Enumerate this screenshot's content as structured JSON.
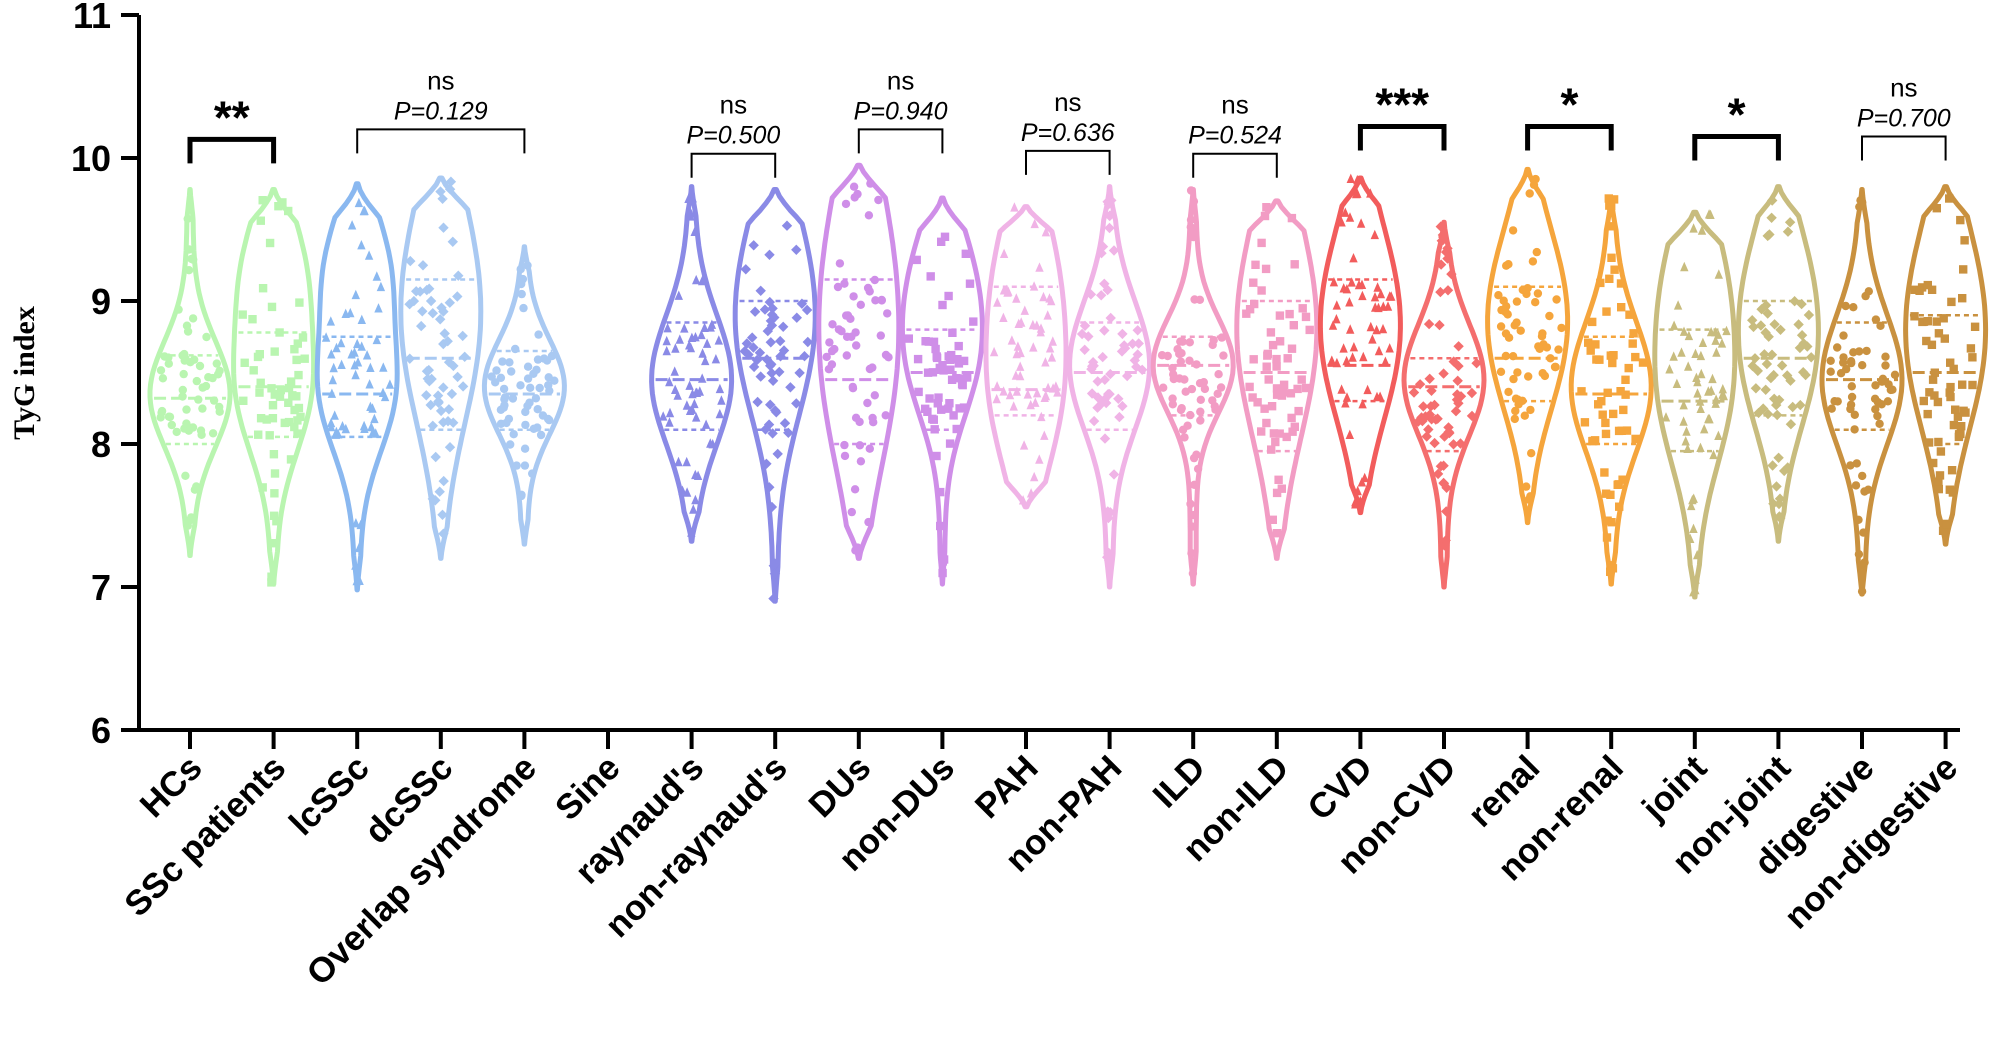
{
  "chart_data": {
    "type": "violin",
    "ylabel": "TyG index",
    "xlabel": "",
    "ylim": [
      6,
      11
    ],
    "yticks": [
      "6",
      "7",
      "8",
      "9",
      "10",
      "11"
    ],
    "groups": [
      {
        "name": "HCs",
        "color": "#b9f5b0",
        "min": 7.22,
        "q1": 8.0,
        "median": 8.32,
        "q3": 8.62,
        "max": 9.78,
        "peaks": [
          8.35
        ]
      },
      {
        "name": "SSc patients",
        "color": "#b9f5b0",
        "min": 7.02,
        "q1": 8.05,
        "median": 8.4,
        "q3": 8.78,
        "max": 9.78,
        "peaks": [
          8.35,
          9.2
        ]
      },
      {
        "name": "lcSSc",
        "color": "#8ab8f0",
        "min": 6.98,
        "q1": 8.05,
        "median": 8.35,
        "q3": 8.75,
        "max": 9.82,
        "peaks": [
          8.35,
          9.22
        ]
      },
      {
        "name": "dcSSc",
        "color": "#a9c9f2",
        "min": 7.2,
        "q1": 8.1,
        "median": 8.6,
        "q3": 9.15,
        "max": 9.86,
        "peaks": [
          8.6,
          9.35
        ]
      },
      {
        "name": "Overlap syndrome",
        "color": "#a9c9f2",
        "min": 7.3,
        "q1": 8.1,
        "median": 8.35,
        "q3": 8.65,
        "max": 9.38,
        "peaks": [
          8.4
        ]
      },
      {
        "name": "Sine",
        "color": "#ffffff",
        "min": null,
        "q1": null,
        "median": null,
        "q3": null,
        "max": null,
        "peaks": []
      },
      {
        "name": "raynaud's",
        "color": "#8a8ae6",
        "min": 7.32,
        "q1": 8.1,
        "median": 8.45,
        "q3": 8.85,
        "max": 9.8,
        "peaks": [
          8.45
        ]
      },
      {
        "name": "non-raynaud's",
        "color": "#8a8ae6",
        "min": 6.9,
        "q1": 8.1,
        "median": 8.6,
        "q3": 9.0,
        "max": 9.78,
        "peaks": [
          8.6,
          9.3
        ]
      },
      {
        "name": "DUs",
        "color": "#cf8ee8",
        "min": 7.2,
        "q1": 8.0,
        "median": 8.45,
        "q3": 9.15,
        "max": 9.95,
        "peaks": [
          8.4,
          9.4
        ]
      },
      {
        "name": "non-DUs",
        "color": "#cf8ee8",
        "min": 7.02,
        "q1": 8.1,
        "median": 8.5,
        "q3": 8.8,
        "max": 9.72,
        "peaks": [
          8.55,
          9.2
        ]
      },
      {
        "name": "PAH",
        "color": "#f0b3e6",
        "min": 7.56,
        "q1": 8.2,
        "median": 8.38,
        "q3": 9.1,
        "max": 9.66,
        "peaks": [
          8.3,
          9.2
        ]
      },
      {
        "name": "non-PAH",
        "color": "#f0b3e6",
        "min": 7.0,
        "q1": 8.1,
        "median": 8.5,
        "q3": 8.85,
        "max": 9.8,
        "peaks": [
          8.55
        ]
      },
      {
        "name": "ILD",
        "color": "#f29cc4",
        "min": 7.02,
        "q1": 8.2,
        "median": 8.55,
        "q3": 8.75,
        "max": 9.78,
        "peaks": [
          8.55
        ]
      },
      {
        "name": "non-ILD",
        "color": "#f29cc4",
        "min": 7.2,
        "q1": 7.95,
        "median": 8.5,
        "q3": 9.0,
        "max": 9.7,
        "peaks": [
          8.5,
          9.2
        ]
      },
      {
        "name": "CVD",
        "color": "#f25c5c",
        "min": 7.52,
        "q1": 8.3,
        "median": 8.55,
        "q3": 9.15,
        "max": 9.86,
        "peaks": [
          8.55,
          9.2
        ]
      },
      {
        "name": "non-CVD",
        "color": "#f46e6e",
        "min": 7.0,
        "q1": 7.95,
        "median": 8.4,
        "q3": 8.6,
        "max": 9.55,
        "peaks": [
          8.45
        ]
      },
      {
        "name": "renal",
        "color": "#f5a53c",
        "min": 7.45,
        "q1": 8.3,
        "median": 8.6,
        "q3": 9.1,
        "max": 9.92,
        "peaks": [
          8.6,
          9.2
        ]
      },
      {
        "name": "non-renal",
        "color": "#f5a53c",
        "min": 7.02,
        "q1": 8.0,
        "median": 8.35,
        "q3": 8.75,
        "max": 9.72,
        "peaks": [
          8.4
        ]
      },
      {
        "name": "joint",
        "color": "#c8bc7e",
        "min": 6.93,
        "q1": 7.95,
        "median": 8.3,
        "q3": 8.8,
        "max": 9.62,
        "peaks": [
          8.3,
          9.15
        ]
      },
      {
        "name": "non-joint",
        "color": "#c8bc7e",
        "min": 7.32,
        "q1": 8.2,
        "median": 8.6,
        "q3": 9.0,
        "max": 9.8,
        "peaks": [
          8.5,
          9.2
        ]
      },
      {
        "name": "digestive",
        "color": "#c9913f",
        "min": 6.95,
        "q1": 8.1,
        "median": 8.45,
        "q3": 8.85,
        "max": 9.78,
        "peaks": [
          8.45
        ]
      },
      {
        "name": "non-digestive",
        "color": "#c9913f",
        "min": 7.3,
        "q1": 8.0,
        "median": 8.5,
        "q3": 8.9,
        "max": 9.8,
        "peaks": [
          8.5,
          9.2
        ]
      }
    ],
    "comparisons": [
      {
        "from": "HCs",
        "to": "SSc patients",
        "label": "**",
        "p_label": "",
        "y": 10.13
      },
      {
        "from": "lcSSc",
        "to": "Overlap syndrome",
        "label": "ns",
        "p_label": "P=0.129",
        "y": 10.2
      },
      {
        "from": "raynaud's",
        "to": "non-raynaud's",
        "label": "ns",
        "p_label": "P=0.500",
        "y": 10.03
      },
      {
        "from": "DUs",
        "to": "non-DUs",
        "label": "ns",
        "p_label": "P=0.940",
        "y": 10.2
      },
      {
        "from": "PAH",
        "to": "non-PAH",
        "label": "ns",
        "p_label": "P=0.636",
        "y": 10.05
      },
      {
        "from": "ILD",
        "to": "non-ILD",
        "label": "ns",
        "p_label": "P=0.524",
        "y": 10.03
      },
      {
        "from": "CVD",
        "to": "non-CVD",
        "label": "***",
        "p_label": "",
        "y": 10.22
      },
      {
        "from": "renal",
        "to": "non-renal",
        "label": "*",
        "p_label": "",
        "y": 10.22
      },
      {
        "from": "joint",
        "to": "non-joint",
        "label": "*",
        "p_label": "",
        "y": 10.15
      },
      {
        "from": "digestive",
        "to": "non-digestive",
        "label": "ns",
        "p_label": "P=0.700",
        "y": 10.15
      }
    ]
  }
}
